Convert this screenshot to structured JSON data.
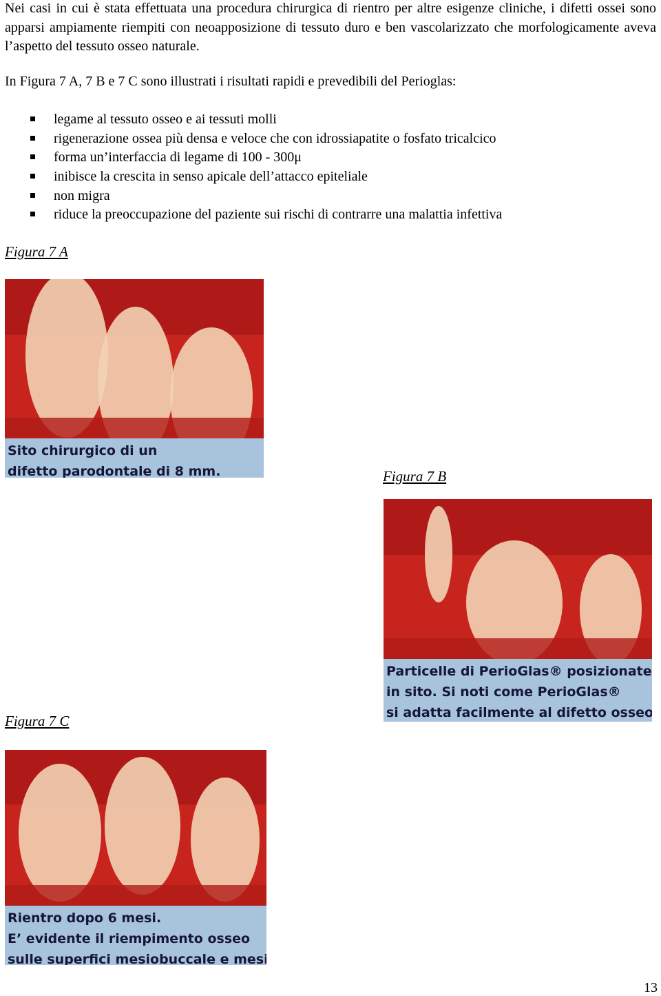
{
  "paragraphs": [
    "Nei casi in cui è stata effettuata una procedura chirurgica di rientro per altre esigenze cliniche, i difetti ossei sono apparsi ampiamente riempiti con neoapposizione di tessuto duro e ben vascolarizzato che morfologicamente aveva l’aspetto del tessuto osseo naturale.",
    "In Figura 7 A, 7 B e 7 C sono illustrati i risultati rapidi e prevedibili del Perioglas:"
  ],
  "bullets": [
    "legame al tessuto osseo e ai tessuti molli",
    "rigenerazione ossea più densa e veloce che con idrossiapatite o fosfato tricalcico",
    "forma un’interfaccia di legame di 100 - 300μ",
    "inibisce la crescita in senso apicale dell’attacco epiteliale",
    "non migra",
    "riduce la preoccupazione del paziente sui rischi di contrarre una malattia infettiva"
  ],
  "figures": [
    {
      "label": "Figura 7 A",
      "caption": [
        "Sito chirurgico di un",
        "difetto parodontale di 8 mm."
      ]
    },
    {
      "label": "Figura 7 B",
      "caption": [
        "Particelle di PerioGlas® posizionate",
        "in sito. Si noti come PerioGlas®",
        "si adatta facilmente al difetto osseo."
      ]
    },
    {
      "label": "Figura 7 C",
      "caption": [
        "Rientro dopo 6 mesi.",
        "E’ evidente il riempimento osseo",
        "sulle superfici mesiobuccale  e mesi"
      ]
    }
  ],
  "page_number": "13"
}
